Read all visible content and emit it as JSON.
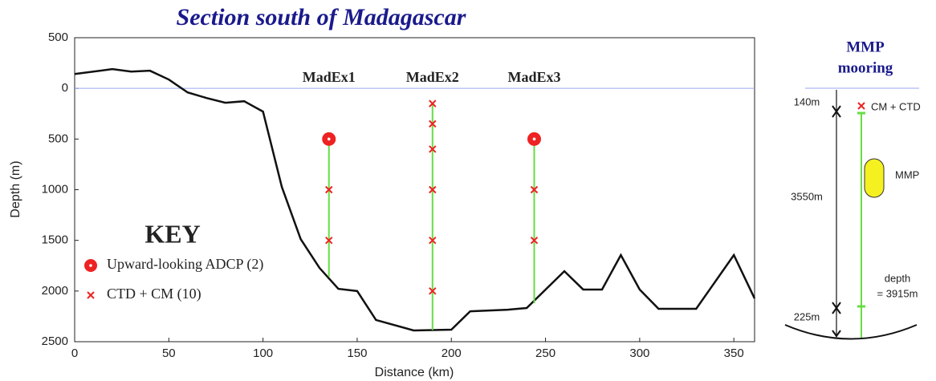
{
  "chart_data": {
    "type": "section",
    "title": "Section south of Madagascar",
    "x_label": "Distance (km)",
    "y_label": "Depth (m)",
    "xlim": [
      0,
      361
    ],
    "ylim": [
      -500,
      2500
    ],
    "y_inverted": true,
    "xticks": [
      0,
      50,
      100,
      150,
      200,
      250,
      300,
      350
    ],
    "yticks": [
      {
        "value": -500,
        "label": "500"
      },
      0,
      500,
      1000,
      1500,
      2000,
      2500
    ],
    "reference_line": {
      "value": 0,
      "color": "#9aa6f0"
    },
    "line": {
      "color": "#111111",
      "x": [
        0,
        20,
        30,
        40,
        50,
        60,
        70,
        80,
        90,
        100,
        110,
        120,
        130,
        140,
        150,
        160,
        180,
        200,
        210,
        230,
        240,
        260,
        270,
        280,
        290,
        300,
        310,
        330,
        350,
        361
      ],
      "values": [
        -142,
        -190,
        -166,
        -174,
        -87,
        40,
        95,
        142,
        127,
        229,
        973,
        1487,
        1772,
        1978,
        2000,
        2286,
        2389,
        2381,
        2200,
        2184,
        2168,
        1804,
        1985,
        1985,
        1645,
        1985,
        2175,
        2175,
        1645,
        2073
      ]
    },
    "mooring_color": "#66dd44",
    "marker_color": "#ee2222",
    "moorings": [
      {
        "label": "MadEx1",
        "x": 135,
        "top": 500,
        "bottom": 1860,
        "adcp": [
          500
        ],
        "ctd": [
          1000,
          1500
        ]
      },
      {
        "label": "MadEx2",
        "x": 190,
        "top": 140,
        "bottom": 2385,
        "adcp": [],
        "ctd": [
          150,
          350,
          600,
          1000,
          1500,
          2000
        ]
      },
      {
        "label": "MadEx3",
        "x": 244,
        "top": 500,
        "bottom": 2120,
        "adcp": [
          500
        ],
        "ctd": [
          1000,
          1500
        ]
      }
    ],
    "key": {
      "title": "KEY",
      "adcp": "Upward-looking ADCP (2)",
      "ctd": "CTD + CM (10)"
    }
  },
  "mooring_diagram": {
    "title": [
      "MMP",
      "mooring"
    ],
    "top_gap": "140m",
    "instrument_top": "CM + CTD",
    "profiler": "MMP",
    "length": "3550m",
    "depth": [
      "depth",
      "= 3915m"
    ],
    "bottom_gap": "225m"
  }
}
